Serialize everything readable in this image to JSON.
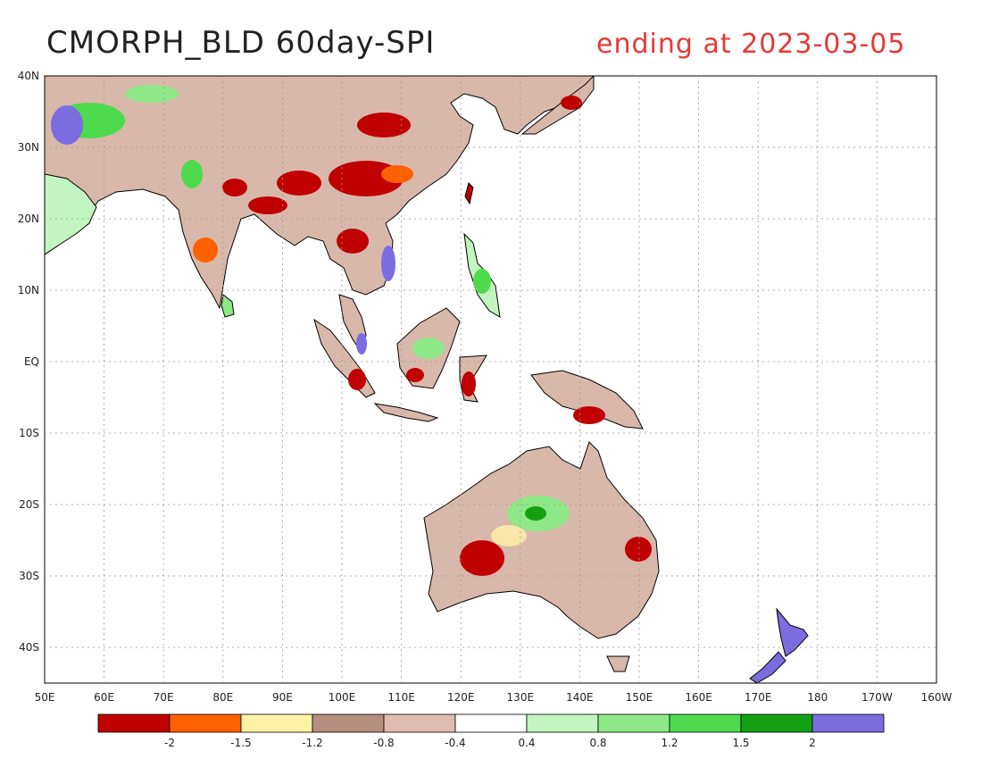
{
  "title": "CMORPH_BLD 60day-SPI",
  "subtitle": "ending at 2023-03-05",
  "lat_labels": [
    "40N",
    "30N",
    "20N",
    "10N",
    "EQ",
    "10S",
    "20S",
    "30S",
    "40S"
  ],
  "lon_labels": [
    "50E",
    "60E",
    "70E",
    "80E",
    "90E",
    "100E",
    "110E",
    "120E",
    "130E",
    "140E",
    "150E",
    "160E",
    "170E",
    "180",
    "170W",
    "160W"
  ],
  "colorbar": {
    "colors": [
      "#c00000",
      "#ff6000",
      "#fff3a8",
      "#b58e80",
      "#dfbcb1",
      "#ffffff",
      "#c2f5c0",
      "#8ee887",
      "#4ddb4d",
      "#12a012",
      "#7b6ce0"
    ],
    "labels": [
      "-2",
      "-1.5",
      "-1.2",
      "-0.8",
      "-0.4",
      "0.4",
      "0.8",
      "1.2",
      "1.5",
      "2"
    ]
  },
  "colors": {
    "title": "#222222",
    "subtitle": "#e53935",
    "grid": "#999999",
    "coast": "#000000"
  }
}
